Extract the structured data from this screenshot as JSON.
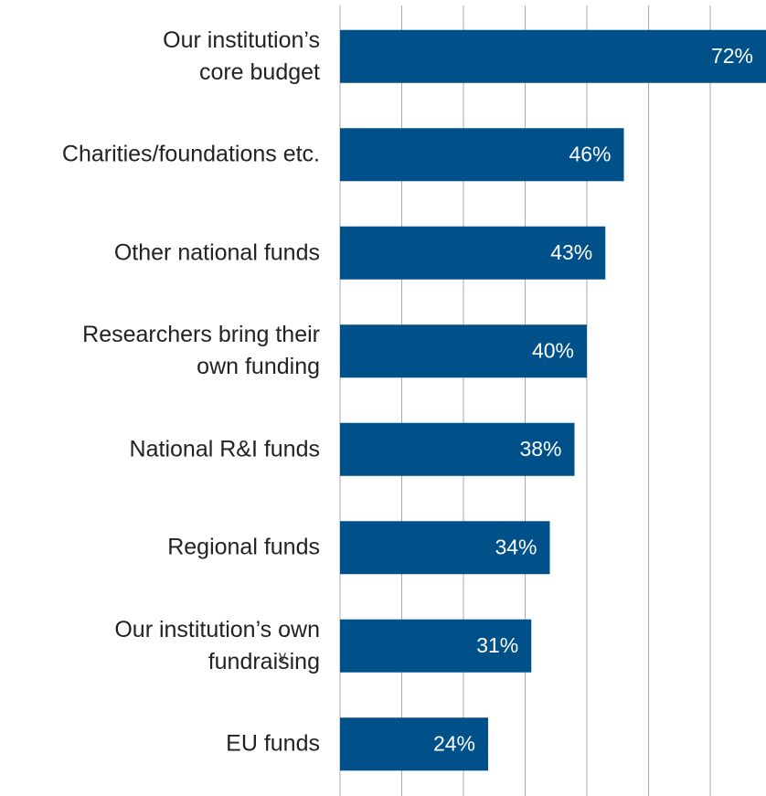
{
  "chart_data": {
    "type": "hbar",
    "categories": [
      "Our institution’s\ncore budget",
      "Charities/foundations etc.",
      "Other national funds",
      "Researchers bring their\nown funding",
      "National R&I funds",
      "Regional funds",
      "Our institution’s own\nfundraising",
      "EU funds"
    ],
    "values": [
      72,
      46,
      43,
      40,
      38,
      34,
      31,
      24
    ],
    "value_labels": [
      "72%",
      "46%",
      "43%",
      "40%",
      "38%",
      "34%",
      "31%",
      "24%"
    ],
    "color": "#00508a",
    "xlim": [
      0,
      80
    ],
    "xticks": [
      0,
      10,
      20,
      30,
      40,
      50,
      60,
      70
    ],
    "grid": true,
    "annotation": "v"
  }
}
